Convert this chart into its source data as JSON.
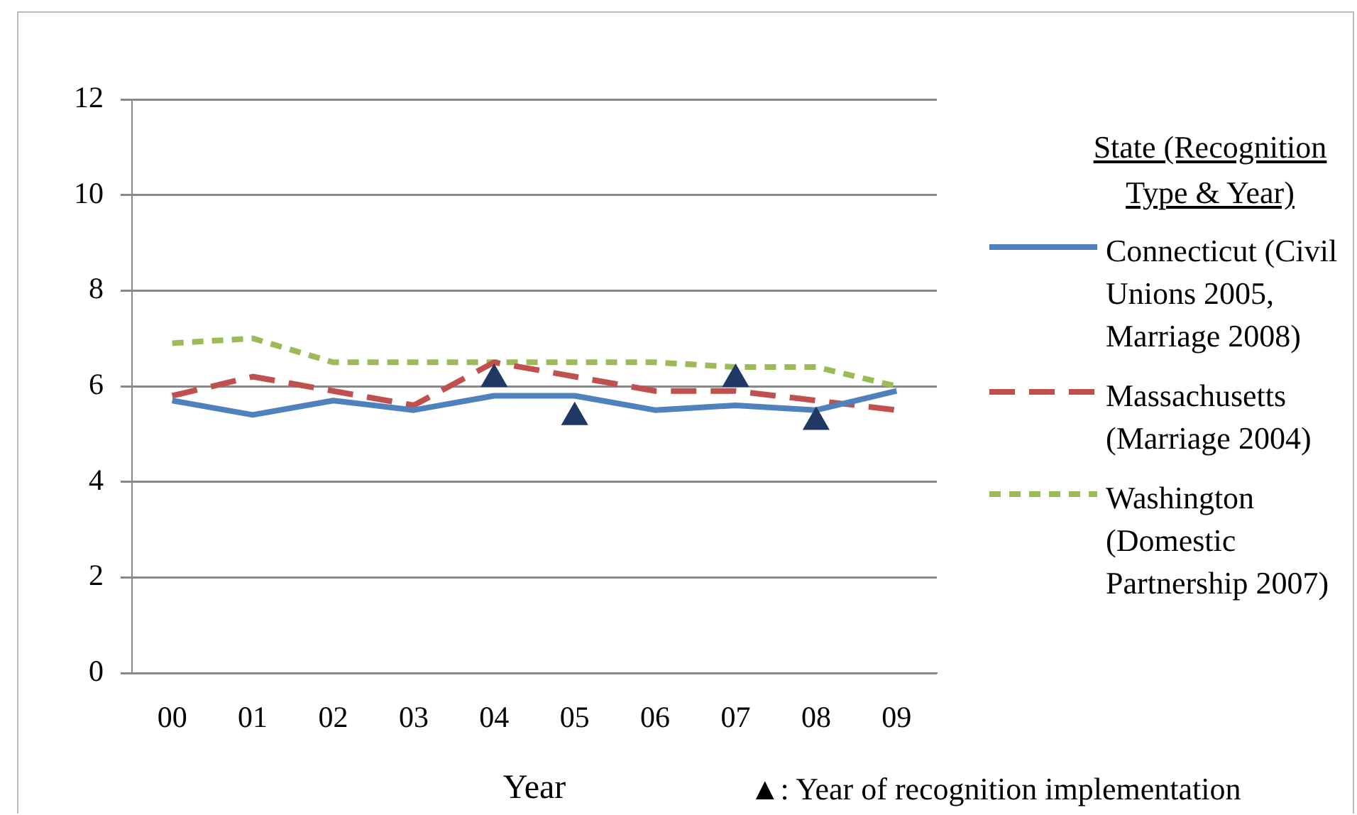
{
  "chart_data": {
    "type": "line",
    "xlabel": "Year",
    "legend_title": "State (Recognition Type & Year)",
    "categories": [
      "00",
      "01",
      "02",
      "03",
      "04",
      "05",
      "06",
      "07",
      "08",
      "09"
    ],
    "series": [
      {
        "name": "Connecticut (Civil Unions 2005, Marriage 2008)",
        "color": "#4f81bd",
        "line_style": "solid",
        "values": [
          5.7,
          5.4,
          5.7,
          5.5,
          5.8,
          5.8,
          5.5,
          5.6,
          5.5,
          5.9
        ]
      },
      {
        "name": "Massachusetts (Marriage 2004)",
        "color": "#c0504d",
        "line_style": "dashed",
        "values": [
          5.8,
          6.2,
          5.9,
          5.6,
          6.5,
          6.2,
          5.9,
          5.9,
          5.7,
          5.5
        ]
      },
      {
        "name": "Washington (Domestic Partnership 2007)",
        "color": "#9bbb59",
        "line_style": "dotted",
        "values": [
          6.9,
          7.0,
          6.5,
          6.5,
          6.5,
          6.5,
          6.5,
          6.4,
          6.4,
          6.0
        ]
      },
      {
        "type": "scatter",
        "marker": "triangle",
        "color": "#1f3864",
        "x": [
          "04",
          "05",
          "07",
          "08"
        ],
        "values": [
          6.15,
          5.35,
          6.15,
          5.25
        ]
      }
    ],
    "ylim": [
      0,
      12
    ],
    "yticks": [
      0,
      2,
      4,
      6,
      8,
      10,
      12
    ],
    "grid": "y",
    "legend": "right",
    "marker": "none",
    "annotations": [
      "▲: Year of recognition implementation"
    ]
  }
}
